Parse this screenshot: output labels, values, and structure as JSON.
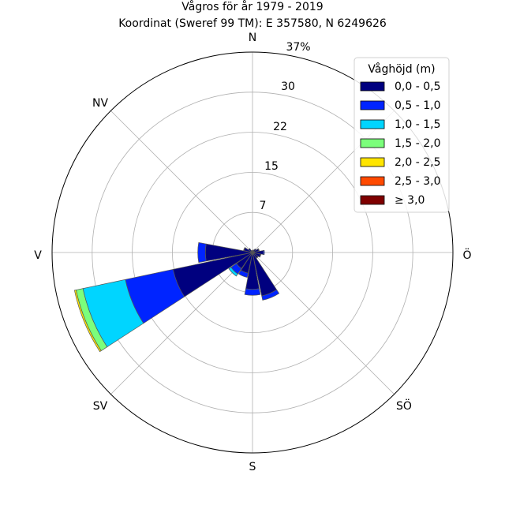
{
  "chart_data": {
    "type": "windrose",
    "title_line1": "Vågros för år 1979 - 2019",
    "title_line2": "Koordinat (Sweref 99 TM): E 357580, N 6249626",
    "directions": [
      "N",
      "Ö",
      "S",
      "V",
      "NV",
      "SV",
      "SÖ"
    ],
    "radial_ticks": [
      "7",
      "15",
      "22",
      "30",
      "37%"
    ],
    "radial_tick_values": [
      7.4,
      14.8,
      22.2,
      29.6,
      37
    ],
    "rmax": 37,
    "legend_title": "Våghöjd (m)",
    "bins": [
      {
        "label": "0,0 - 0,5",
        "color": "#00007f"
      },
      {
        "label": "0,5 - 1,0",
        "color": "#0024ff"
      },
      {
        "label": "1,0 - 1,5",
        "color": "#00d5ff"
      },
      {
        "label": "1,5 - 2,0",
        "color": "#7bff7b"
      },
      {
        "label": "2,0 - 2,5",
        "color": "#ffe500"
      },
      {
        "label": "2,5 - 3,0",
        "color": "#ff4a00"
      },
      {
        "label": "≥ 3,0",
        "color": "#7f0000"
      }
    ],
    "sectors": [
      {
        "direction_deg": 0,
        "values": [
          0.3,
          0,
          0,
          0,
          0,
          0,
          0
        ]
      },
      {
        "direction_deg": 22.5,
        "values": [
          0.5,
          0,
          0,
          0,
          0,
          0,
          0
        ]
      },
      {
        "direction_deg": 45,
        "values": [
          0.8,
          0,
          0,
          0,
          0,
          0,
          0
        ]
      },
      {
        "direction_deg": 67.5,
        "values": [
          1.2,
          0.1,
          0,
          0,
          0,
          0,
          0
        ]
      },
      {
        "direction_deg": 90,
        "values": [
          2.0,
          0.2,
          0,
          0,
          0,
          0,
          0
        ]
      },
      {
        "direction_deg": 112.5,
        "values": [
          1.5,
          0.1,
          0,
          0,
          0,
          0,
          0
        ]
      },
      {
        "direction_deg": 135,
        "values": [
          1.2,
          0.1,
          0,
          0,
          0,
          0,
          0
        ]
      },
      {
        "direction_deg": 157.5,
        "values": [
          8.2,
          0.8,
          0,
          0,
          0,
          0,
          0
        ]
      },
      {
        "direction_deg": 180,
        "values": [
          6.8,
          1.1,
          0,
          0,
          0,
          0,
          0
        ]
      },
      {
        "direction_deg": 202.5,
        "values": [
          3.9,
          0.8,
          0,
          0,
          0,
          0,
          0
        ]
      },
      {
        "direction_deg": 225,
        "values": [
          3.6,
          1.2,
          0.5,
          0,
          0,
          0,
          0
        ]
      },
      {
        "direction_deg": 247.5,
        "values": [
          15.0,
          9.0,
          8.0,
          1.3,
          0.3,
          0,
          0
        ]
      },
      {
        "direction_deg": 270,
        "values": [
          8.7,
          1.4,
          0,
          0,
          0,
          0,
          0
        ]
      },
      {
        "direction_deg": 292.5,
        "values": [
          1.6,
          0.1,
          0,
          0,
          0,
          0,
          0
        ]
      },
      {
        "direction_deg": 315,
        "values": [
          0.9,
          0,
          0,
          0,
          0,
          0,
          0
        ]
      },
      {
        "direction_deg": 337.5,
        "values": [
          0.4,
          0,
          0,
          0,
          0,
          0,
          0
        ]
      }
    ],
    "sector_width_deg": 21,
    "grid": true,
    "legend_position": "top-right"
  }
}
